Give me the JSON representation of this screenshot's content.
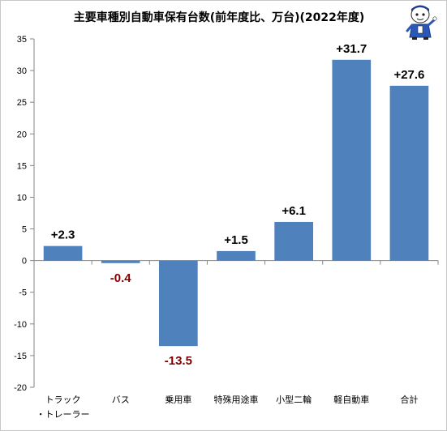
{
  "chart_data": {
    "type": "bar",
    "title": "主要車種別自動車保有台数(前年度比、万台)(2022年度)",
    "xlabel": "",
    "ylabel": "",
    "categories": [
      [
        "トラック",
        "・トレーラー"
      ],
      [
        "バス"
      ],
      [
        "乗用車"
      ],
      [
        "特殊用途車"
      ],
      [
        "小型二輪"
      ],
      [
        "軽自動車"
      ],
      [
        "合計"
      ]
    ],
    "values": [
      2.3,
      -0.4,
      -13.5,
      1.5,
      6.1,
      31.7,
      27.6
    ],
    "data_labels": [
      "+2.3",
      "-0.4",
      "-13.5",
      "+1.5",
      "+6.1",
      "+31.7",
      "+27.6"
    ],
    "ylim": [
      -20,
      35
    ],
    "yticks": [
      35,
      30,
      25,
      20,
      15,
      10,
      5,
      0,
      -5,
      -10,
      -15,
      -20
    ],
    "grid": false,
    "legend": "none",
    "colors": {
      "bar": "#4f81bd",
      "positive_label": "#000000",
      "negative_label": "#800000",
      "axis": "#868686"
    }
  }
}
